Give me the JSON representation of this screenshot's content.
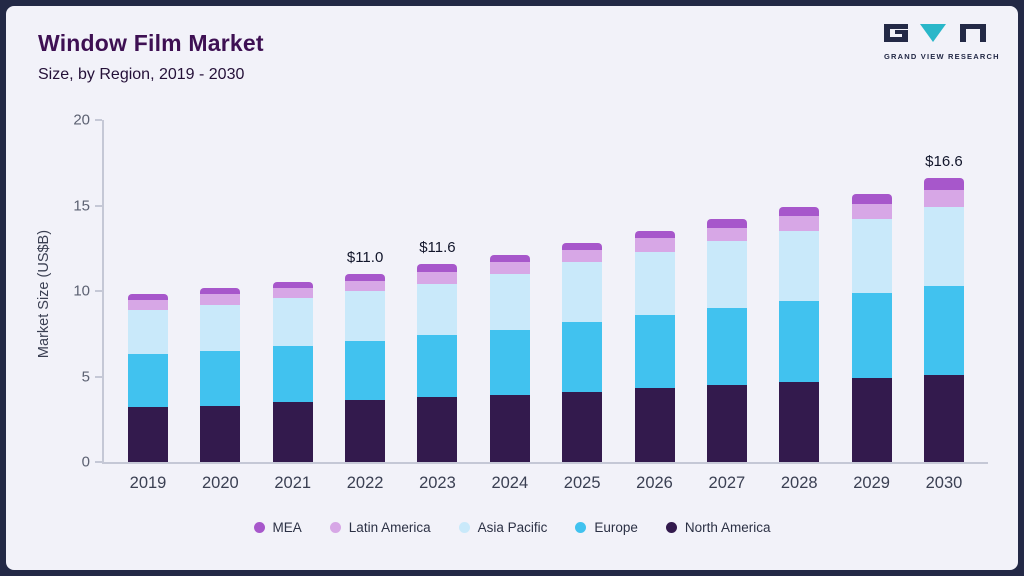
{
  "header": {
    "title": "Window Film Market",
    "subtitle": "Size, by Region, 2019 - 2030"
  },
  "logo": {
    "text": "GRAND VIEW RESEARCH",
    "dark_color": "#232946",
    "teal_color": "#2ab7c9"
  },
  "chart_data": {
    "type": "bar",
    "stacked": true,
    "title": "Window Film Market Size, by Region, 2019 - 2030",
    "xlabel": "",
    "ylabel": "Market Size (US$B)",
    "ylim": [
      0,
      20
    ],
    "yticks": [
      0,
      5,
      10,
      15,
      20
    ],
    "grid": false,
    "legend_position": "bottom",
    "categories": [
      "2019",
      "2020",
      "2021",
      "2022",
      "2023",
      "2024",
      "2025",
      "2026",
      "2027",
      "2028",
      "2029",
      "2030"
    ],
    "series": [
      {
        "name": "North America",
        "color": "#331a4d",
        "values": [
          3.2,
          3.3,
          3.5,
          3.6,
          3.8,
          3.9,
          4.1,
          4.3,
          4.5,
          4.7,
          4.9,
          5.1
        ]
      },
      {
        "name": "Europe",
        "color": "#41c2ef",
        "values": [
          3.1,
          3.2,
          3.3,
          3.5,
          3.6,
          3.8,
          4.1,
          4.3,
          4.5,
          4.7,
          5.0,
          5.2
        ]
      },
      {
        "name": "Asia Pacific",
        "color": "#c9e9fa",
        "values": [
          2.6,
          2.7,
          2.8,
          2.9,
          3.0,
          3.3,
          3.5,
          3.7,
          3.9,
          4.1,
          4.3,
          4.6
        ]
      },
      {
        "name": "Latin America",
        "color": "#d7a7e6",
        "values": [
          0.6,
          0.6,
          0.6,
          0.6,
          0.7,
          0.7,
          0.7,
          0.8,
          0.8,
          0.9,
          0.9,
          1.0
        ]
      },
      {
        "name": "MEA",
        "color": "#a757cb",
        "values": [
          0.3,
          0.4,
          0.3,
          0.4,
          0.5,
          0.4,
          0.4,
          0.4,
          0.5,
          0.5,
          0.6,
          0.7
        ]
      }
    ],
    "annotations": [
      {
        "category": "2022",
        "label": "$11.0"
      },
      {
        "category": "2023",
        "label": "$11.6"
      },
      {
        "category": "2030",
        "label": "$16.6"
      }
    ],
    "legend": [
      "MEA",
      "Latin America",
      "Asia Pacific",
      "Europe",
      "North America"
    ]
  }
}
